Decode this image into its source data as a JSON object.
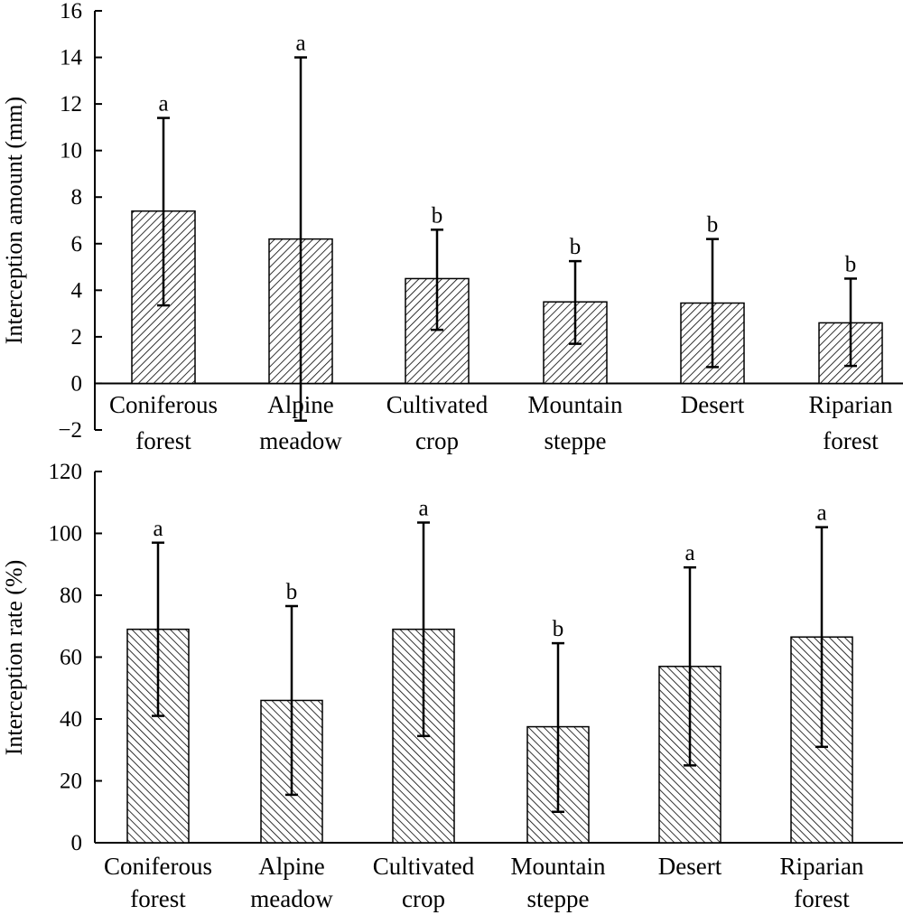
{
  "chart_data": [
    {
      "type": "bar",
      "title": "",
      "xlabel": "",
      "ylabel": "Interception amount (mm)",
      "ylim": [
        -2,
        16
      ],
      "yticks": [
        "−2",
        "0",
        "2",
        "4",
        "6",
        "8",
        "10",
        "12",
        "14",
        "16"
      ],
      "categories": [
        [
          "Coniferous",
          "forest"
        ],
        [
          "Alpine",
          "meadow"
        ],
        [
          "Cultivated",
          "crop"
        ],
        [
          "Mountain",
          "steppe"
        ],
        [
          "Desert"
        ],
        [
          "Riparian",
          "forest"
        ]
      ],
      "values": [
        7.4,
        6.2,
        4.5,
        3.5,
        3.45,
        2.6
      ],
      "error_upper": [
        11.4,
        14.0,
        6.6,
        5.25,
        6.2,
        4.5
      ],
      "error_lower": [
        3.35,
        -1.6,
        2.3,
        1.7,
        0.7,
        0.75
      ],
      "significance": [
        "a",
        "a",
        "b",
        "b",
        "b",
        "b"
      ],
      "pattern": "diagonal-hatch",
      "grid": false
    },
    {
      "type": "bar",
      "title": "",
      "xlabel": "",
      "ylabel": "Interception rate (%)",
      "ylim": [
        0,
        120
      ],
      "yticks": [
        "0",
        "20",
        "40",
        "60",
        "80",
        "100",
        "120"
      ],
      "categories": [
        [
          "Coniferous",
          "forest"
        ],
        [
          "Alpine",
          "meadow"
        ],
        [
          "Cultivated",
          "crop"
        ],
        [
          "Mountain",
          "steppe"
        ],
        [
          "Desert"
        ],
        [
          "Riparian",
          "forest"
        ]
      ],
      "values": [
        69,
        46,
        69,
        37.5,
        57,
        66.5
      ],
      "error_upper": [
        97,
        76.5,
        103.5,
        64.5,
        89,
        102
      ],
      "error_lower": [
        41,
        15.5,
        34.5,
        10,
        25,
        31
      ],
      "significance": [
        "a",
        "b",
        "a",
        "b",
        "a",
        "a"
      ],
      "pattern": "diagonal-hatch",
      "grid": false
    }
  ]
}
